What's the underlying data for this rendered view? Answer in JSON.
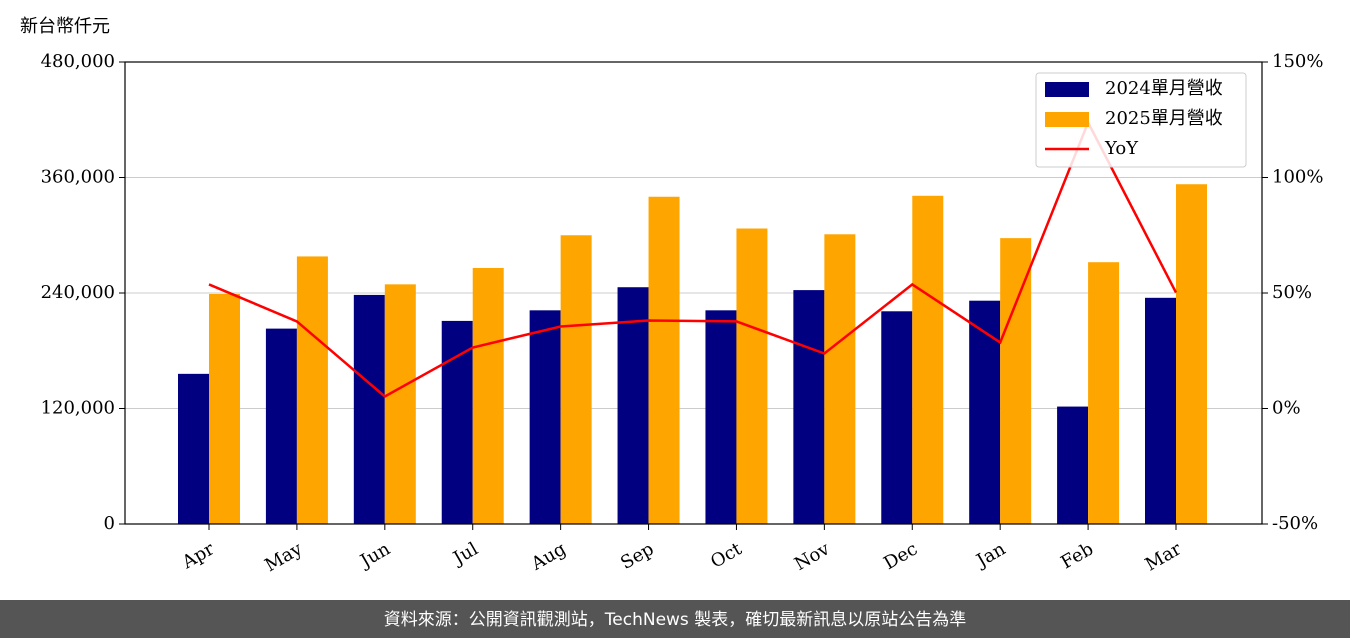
{
  "chart_data": {
    "type": "bar_line",
    "y_axis_label": "新台幣仟元",
    "categories": [
      "Apr",
      "May",
      "Jun",
      "Jul",
      "Aug",
      "Sep",
      "Oct",
      "Nov",
      "Dec",
      "Jan",
      "Feb",
      "Mar"
    ],
    "series": [
      {
        "name": "2024單月營收",
        "color": "#000080",
        "type": "bar",
        "values": [
          156000,
          203000,
          238000,
          211000,
          222000,
          246000,
          222000,
          243000,
          221000,
          232000,
          122000,
          235000
        ]
      },
      {
        "name": "2025單月營收",
        "color": "#ffa500",
        "type": "bar",
        "values": [
          239000,
          278000,
          249000,
          266000,
          300000,
          340000,
          307000,
          301000,
          341000,
          297000,
          272000,
          353000
        ]
      },
      {
        "name": "YoY",
        "color": "#ff0000",
        "type": "line",
        "axis": "y2",
        "values": [
          53.7,
          37.7,
          5.2,
          26.4,
          35.5,
          38.1,
          37.7,
          23.8,
          53.7,
          28.6,
          123.8,
          50.2
        ]
      }
    ],
    "ylim": [
      0,
      480000
    ],
    "yticks": [
      0,
      {
        "value": 120000,
        "label": "120,000"
      },
      {
        "value": 240000,
        "label": "240,000"
      },
      {
        "value": 360000,
        "label": "360,000"
      },
      {
        "value": 480000,
        "label": "480,000"
      }
    ],
    "y2lim": [
      -50,
      150
    ],
    "y2ticks": [
      {
        "value": -50,
        "label": "-50%"
      },
      {
        "value": 0,
        "label": "0%"
      },
      {
        "value": 50,
        "label": "50%"
      },
      {
        "value": 100,
        "label": "100%"
      },
      {
        "value": 150,
        "label": "150%"
      }
    ],
    "grid": true,
    "legend": "upper right",
    "footer": "資料來源：公開資訊觀測站，TechNews 製表，確切最新訊息以原站公告為準"
  }
}
